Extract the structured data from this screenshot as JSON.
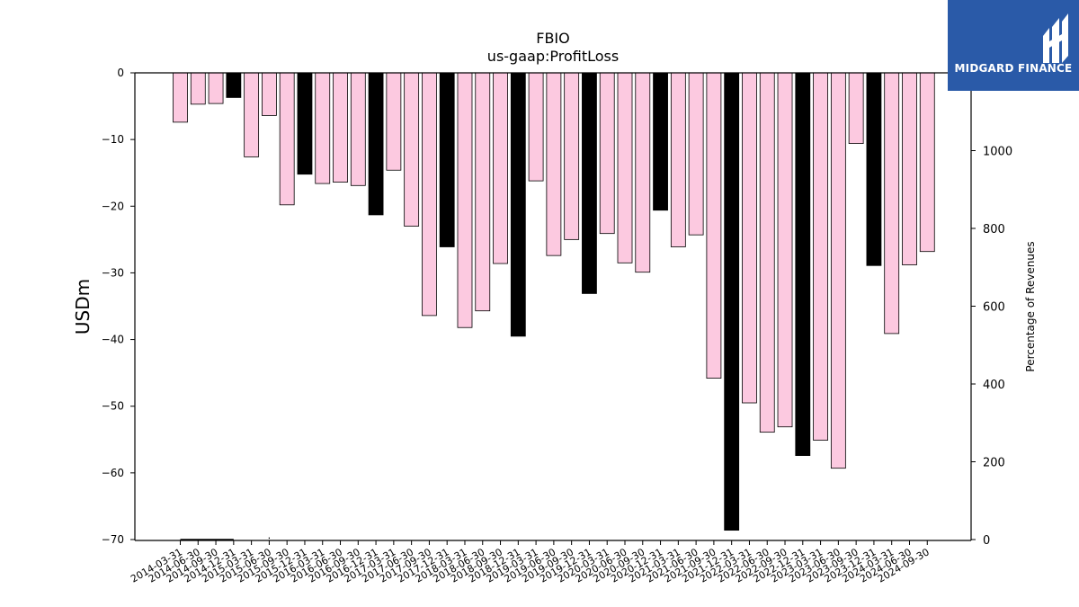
{
  "chart_data": {
    "type": "bar",
    "title": "FBIO",
    "subtitle": "us-gaap:ProfitLoss",
    "ylabel": "USDm",
    "ylabel_right": "Percentage of Revenues",
    "ylim": [
      -70,
      0
    ],
    "ylim_right": [
      0,
      1200
    ],
    "yticks": [
      0,
      -10,
      -20,
      -30,
      -40,
      -50,
      -60,
      -70
    ],
    "yticks_right": [
      0,
      200,
      400,
      600,
      800,
      1000
    ],
    "grid": false,
    "categories": [
      "2014-03-31",
      "2014-06-30",
      "2014-09-30",
      "2014-12-31",
      "2015-03-31",
      "2015-06-30",
      "2015-09-30",
      "2015-12-31",
      "2016-03-31",
      "2016-06-30",
      "2016-09-30",
      "2016-12-31",
      "2017-03-31",
      "2017-06-30",
      "2017-09-30",
      "2017-12-31",
      "2018-03-31",
      "2018-06-30",
      "2018-09-30",
      "2018-12-31",
      "2019-03-31",
      "2019-06-30",
      "2019-09-30",
      "2019-12-31",
      "2020-03-31",
      "2020-06-30",
      "2020-09-30",
      "2020-12-31",
      "2021-03-31",
      "2021-06-30",
      "2021-09-30",
      "2021-12-31",
      "2022-03-31",
      "2022-06-30",
      "2022-09-30",
      "2022-12-31",
      "2023-03-31",
      "2023-06-30",
      "2023-09-30",
      "2023-12-31",
      "2024-03-31",
      "2024-06-30",
      "2024-09-30"
    ],
    "values": [
      -7.4,
      -4.7,
      -4.6,
      -3.7,
      -12.6,
      -6.4,
      -19.8,
      -15.2,
      -16.6,
      -16.4,
      -16.9,
      -21.3,
      -14.6,
      -23.0,
      -36.4,
      -26.1,
      -38.2,
      -35.7,
      -28.6,
      -39.5,
      -16.2,
      -27.4,
      -25.0,
      -33.1,
      -24.1,
      -28.5,
      -29.9,
      -20.6,
      -26.1,
      -24.3,
      -45.8,
      -68.6,
      -49.5,
      -53.9,
      -53.1,
      -57.4,
      -55.1,
      -59.3,
      -10.6,
      -28.9,
      -39.1,
      -28.8,
      -26.8
    ],
    "highlight_indices": [
      3,
      7,
      11,
      15,
      19,
      23,
      27,
      31,
      35,
      39
    ],
    "colors": {
      "bar": "#fcc9e0",
      "highlight": "#000000",
      "edge": "#000000",
      "line": "#000000"
    },
    "secondary_series": {
      "name": "Percentage of Revenues",
      "type": "line",
      "categories": [
        "2014-03-31",
        "2014-06-30",
        "2014-09-30",
        "2014-12-31",
        "2015-03-31",
        "2015-06-30"
      ],
      "values": [
        0,
        0,
        0,
        0,
        null,
        2
      ]
    }
  },
  "logo": {
    "text": "MIDGARD FINANCE",
    "background": "#2a5aa8"
  }
}
